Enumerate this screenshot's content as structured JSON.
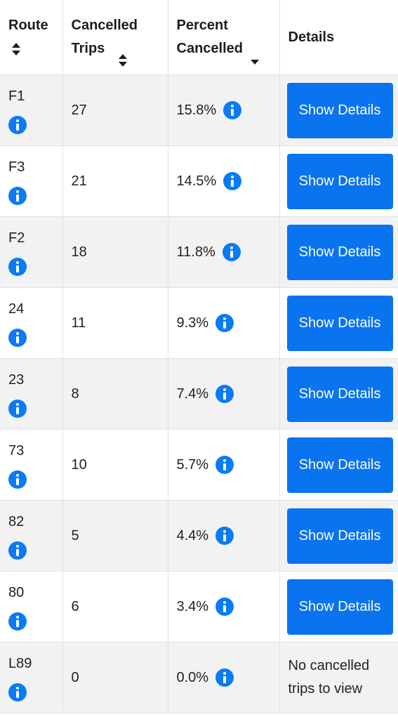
{
  "headers": {
    "route": "Route",
    "cancelled_trips": "Cancelled Trips",
    "percent_cancelled": "Percent Cancelled",
    "details": "Details"
  },
  "details_button_label": "Show Details",
  "no_details_text": "No cancelled trips to view",
  "colors": {
    "accent": "#0a73f0",
    "row_alt": "#f2f2f2",
    "border": "#e2e2e2"
  },
  "rows": [
    {
      "route": "F1",
      "cancelled": "27",
      "percent": "15.8%",
      "has_details": true
    },
    {
      "route": "F3",
      "cancelled": "21",
      "percent": "14.5%",
      "has_details": true
    },
    {
      "route": "F2",
      "cancelled": "18",
      "percent": "11.8%",
      "has_details": true
    },
    {
      "route": "24",
      "cancelled": "11",
      "percent": "9.3%",
      "has_details": true
    },
    {
      "route": "23",
      "cancelled": "8",
      "percent": "7.4%",
      "has_details": true
    },
    {
      "route": "73",
      "cancelled": "10",
      "percent": "5.7%",
      "has_details": true
    },
    {
      "route": "82",
      "cancelled": "5",
      "percent": "4.4%",
      "has_details": true
    },
    {
      "route": "80",
      "cancelled": "6",
      "percent": "3.4%",
      "has_details": true
    },
    {
      "route": "L89",
      "cancelled": "0",
      "percent": "0.0%",
      "has_details": false
    }
  ]
}
